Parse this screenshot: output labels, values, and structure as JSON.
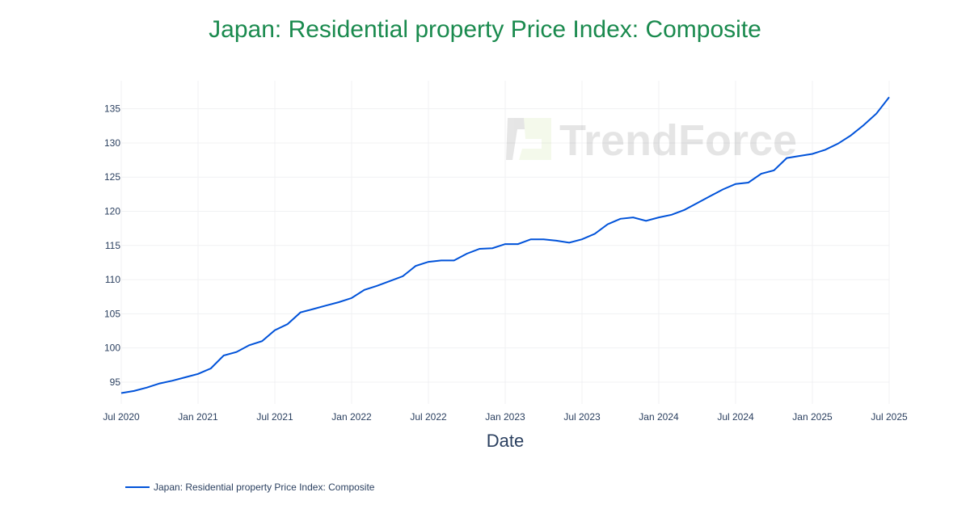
{
  "chart_data": {
    "type": "line",
    "title": "Japan: Residential property Price Index: Composite",
    "xlabel": "Date",
    "ylabel": "",
    "x_range": [
      "2020-07",
      "2025-07"
    ],
    "ylim": [
      91.8,
      139.1
    ],
    "grid": true,
    "legend_position": "bottom-left",
    "x_ticks": [
      "Jul 2020",
      "Jan 2021",
      "Jul 2021",
      "Jan 2022",
      "Jul 2022",
      "Jan 2023",
      "Jul 2023",
      "Jan 2024",
      "Jul 2024",
      "Jan 2025",
      "Jul 2025"
    ],
    "y_ticks": [
      95,
      100,
      105,
      110,
      115,
      120,
      125,
      130,
      135
    ],
    "series": [
      {
        "name": "Japan: Residential property Price Index: Composite",
        "color": "#0052d9",
        "start": "2020-07",
        "frequency": "monthly",
        "values": [
          93.4,
          93.7,
          94.2,
          94.8,
          95.2,
          95.7,
          96.2,
          97.0,
          98.9,
          99.4,
          100.4,
          101.0,
          102.6,
          103.5,
          105.2,
          105.7,
          106.2,
          106.7,
          107.3,
          108.5,
          109.1,
          109.8,
          110.5,
          112.0,
          112.6,
          112.8,
          112.8,
          113.8,
          114.5,
          114.6,
          115.2,
          115.2,
          115.9,
          115.9,
          115.7,
          115.4,
          115.9,
          116.7,
          118.1,
          118.9,
          119.1,
          118.6,
          119.1,
          119.5,
          120.2,
          121.2,
          122.2,
          123.2,
          124.0,
          124.2,
          125.5,
          126.0,
          127.8,
          128.1,
          128.4,
          129.0,
          129.9,
          131.1,
          132.6,
          134.3,
          136.7
        ]
      }
    ]
  },
  "watermark": "TrendForce"
}
